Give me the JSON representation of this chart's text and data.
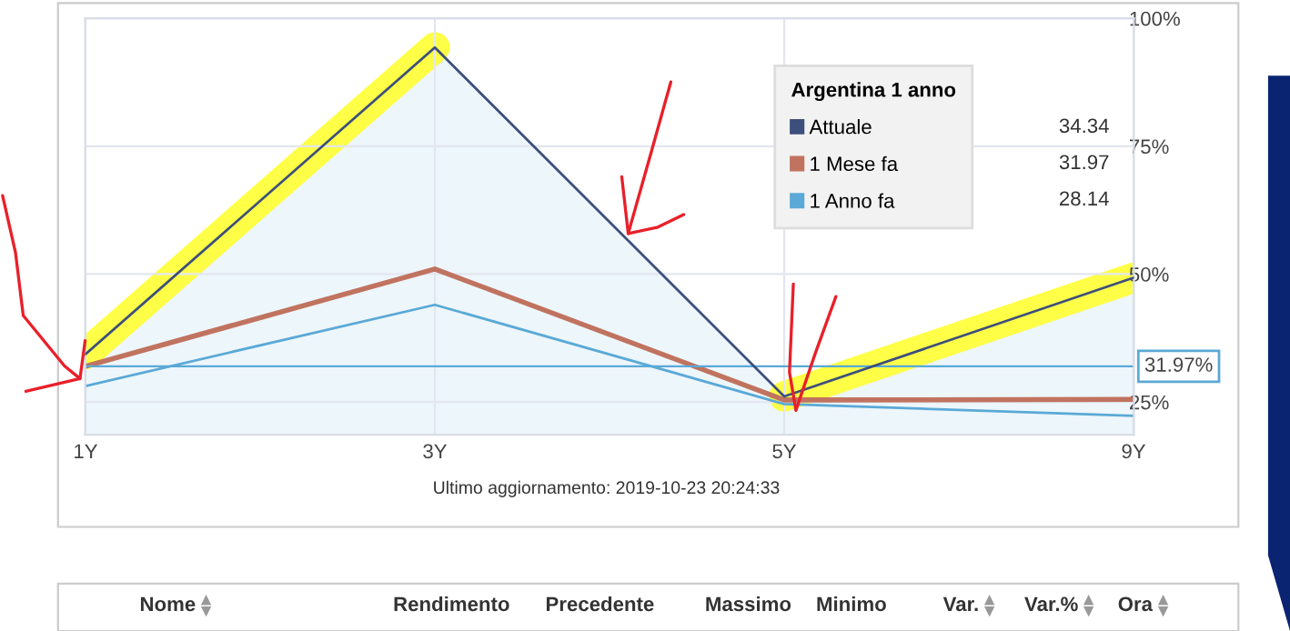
{
  "chart_data": {
    "type": "line",
    "categories": [
      "1Y",
      "3Y",
      "5Y",
      "9Y"
    ],
    "series": [
      {
        "name": "Attuale",
        "type": "area",
        "color": "#3d4f7c",
        "values": [
          34.34,
          94.3,
          26.1,
          49.3
        ]
      },
      {
        "name": "1 Mese fa",
        "color": "#c0735f",
        "values": [
          31.97,
          51,
          25.4,
          25.5
        ]
      },
      {
        "name": "1 Anno fa",
        "color": "#5aa9d6",
        "values": [
          28.14,
          44,
          24.6,
          22.3
        ]
      }
    ],
    "ylim": [
      18.6,
      100
    ],
    "yticks": [
      {
        "value": 25,
        "label": "25%"
      },
      {
        "value": 50,
        "label": "50%"
      },
      {
        "value": 75,
        "label": "75%"
      },
      {
        "value": 100,
        "label": "100%"
      }
    ],
    "ref_lines": [
      {
        "axis": "y",
        "value": 31.97,
        "label": "31.97%",
        "color": "#5aa9d6"
      }
    ],
    "legend": "center",
    "legend_title": "Argentina 1 anno",
    "grid": true,
    "marker": "none",
    "line_style": "solid",
    "annotations": [
      "34.34",
      "31.97",
      "28.14",
      "Ultimo aggiornamento: 2019-10-23 20:24:33",
      "Nome",
      "Rendimento",
      "Precedente",
      "Massimo",
      "Minimo",
      "Var.",
      "Var.%",
      "Ora"
    ]
  }
}
